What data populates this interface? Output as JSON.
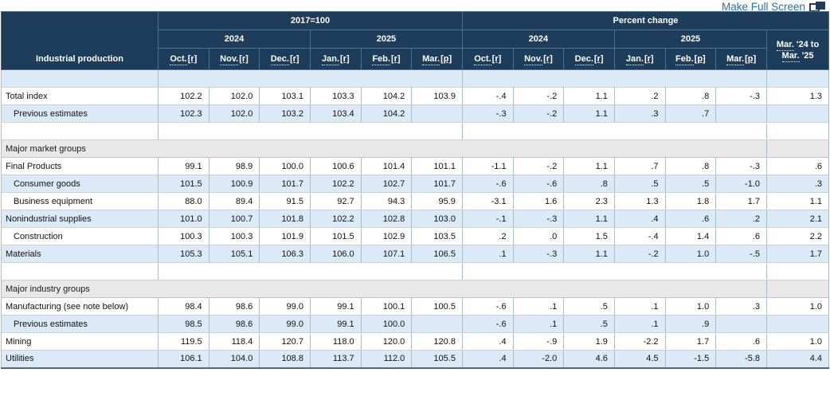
{
  "page": {
    "make_full_screen_label": "Make Full Screen"
  },
  "colors": {
    "header_bg": "#1e3d5b",
    "row_alt_blue": "#dce9f6",
    "section_gray": "#e8e8e8",
    "link_blue": "#2c6e9e",
    "cell_border": "#a9bccd"
  },
  "table": {
    "corner_label": "Industrial production",
    "group_headers": {
      "index": "2017=100",
      "pct": "Percent change"
    },
    "year_2024": "2024",
    "year_2025": "2025",
    "month_headers": [
      {
        "term": "Oct.",
        "tag": "[r]"
      },
      {
        "term": "Nov.",
        "tag": "[r]"
      },
      {
        "term": "Dec.",
        "tag": "[r]"
      },
      {
        "term": "Jan.",
        "tag": "[r]"
      },
      {
        "term": "Feb.",
        "tag": "[r]"
      },
      {
        "term": "Mar.",
        "tag": "[p]"
      },
      {
        "term": "Oct.",
        "tag": "[r]"
      },
      {
        "term": "Nov.",
        "tag": "[r]"
      },
      {
        "term": "Dec.",
        "tag": "[r]"
      },
      {
        "term": "Jan.",
        "tag": "[r]"
      },
      {
        "term": "Feb.",
        "tag": "[p]"
      },
      {
        "term": "Mar.",
        "tag": "[p]"
      }
    ],
    "span_header": {
      "term1": "Mar.",
      "rest1": " '24 to",
      "term2": "Mar.",
      "rest2": " '25"
    },
    "rows": [
      {
        "type": "spacer",
        "shade": "blue"
      },
      {
        "type": "data",
        "shade": "white",
        "indent": false,
        "label": "Total index",
        "index": [
          "102.2",
          "102.0",
          "103.1",
          "103.3",
          "104.2",
          "103.9"
        ],
        "pct": [
          "-.4",
          "-.2",
          "1.1",
          ".2",
          ".8",
          "-.3"
        ],
        "yoy": "1.3"
      },
      {
        "type": "data",
        "shade": "blue",
        "indent": true,
        "label": "Previous estimates",
        "index": [
          "102.3",
          "102.0",
          "103.2",
          "103.4",
          "104.2",
          ""
        ],
        "pct": [
          "-.3",
          "-.2",
          "1.1",
          ".3",
          ".7",
          ""
        ],
        "yoy": ""
      },
      {
        "type": "spacer",
        "shade": "white"
      },
      {
        "type": "section",
        "label": "Major market groups"
      },
      {
        "type": "data",
        "shade": "white",
        "indent": false,
        "label": "Final Products",
        "index": [
          "99.1",
          "98.9",
          "100.0",
          "100.6",
          "101.4",
          "101.1"
        ],
        "pct": [
          "-1.1",
          "-.2",
          "1.1",
          ".7",
          ".8",
          "-.3"
        ],
        "yoy": ".6"
      },
      {
        "type": "data",
        "shade": "blue",
        "indent": true,
        "label": "Consumer goods",
        "index": [
          "101.5",
          "100.9",
          "101.7",
          "102.2",
          "102.7",
          "101.7"
        ],
        "pct": [
          "-.6",
          "-.6",
          ".8",
          ".5",
          ".5",
          "-1.0"
        ],
        "yoy": ".3"
      },
      {
        "type": "data",
        "shade": "white",
        "indent": true,
        "label": "Business equipment",
        "index": [
          "88.0",
          "89.4",
          "91.5",
          "92.7",
          "94.3",
          "95.9"
        ],
        "pct": [
          "-3.1",
          "1.6",
          "2.3",
          "1.3",
          "1.8",
          "1.7"
        ],
        "yoy": "1.1"
      },
      {
        "type": "data",
        "shade": "blue",
        "indent": false,
        "label": "Nonindustrial supplies",
        "index": [
          "101.0",
          "100.7",
          "101.8",
          "102.2",
          "102.8",
          "103.0"
        ],
        "pct": [
          "-.1",
          "-.3",
          "1.1",
          ".4",
          ".6",
          ".2"
        ],
        "yoy": "2.1"
      },
      {
        "type": "data",
        "shade": "white",
        "indent": true,
        "label": "Construction",
        "index": [
          "100.3",
          "100.3",
          "101.9",
          "101.5",
          "102.9",
          "103.5"
        ],
        "pct": [
          ".2",
          ".0",
          "1.5",
          "-.4",
          "1.4",
          ".6"
        ],
        "yoy": "2.2"
      },
      {
        "type": "data",
        "shade": "blue",
        "indent": false,
        "label": "Materials",
        "index": [
          "105.3",
          "105.1",
          "106.3",
          "106.0",
          "107.1",
          "106.5"
        ],
        "pct": [
          ".1",
          "-.3",
          "1.1",
          "-.2",
          "1.0",
          "-.5"
        ],
        "yoy": "1.7"
      },
      {
        "type": "spacer",
        "shade": "white"
      },
      {
        "type": "section",
        "label": "Major industry groups"
      },
      {
        "type": "data",
        "shade": "white",
        "indent": false,
        "label": "Manufacturing (see note below)",
        "index": [
          "98.4",
          "98.6",
          "99.0",
          "99.1",
          "100.1",
          "100.5"
        ],
        "pct": [
          "-.6",
          ".1",
          ".5",
          ".1",
          "1.0",
          ".3"
        ],
        "yoy": "1.0"
      },
      {
        "type": "data",
        "shade": "blue",
        "indent": true,
        "label": "Previous estimates",
        "index": [
          "98.5",
          "98.6",
          "99.0",
          "99.1",
          "100.0",
          ""
        ],
        "pct": [
          "-.6",
          ".1",
          ".5",
          ".1",
          ".9",
          ""
        ],
        "yoy": ""
      },
      {
        "type": "data",
        "shade": "white",
        "indent": false,
        "label": "Mining",
        "index": [
          "119.5",
          "118.4",
          "120.7",
          "118.0",
          "120.0",
          "120.8"
        ],
        "pct": [
          ".4",
          "-.9",
          "1.9",
          "-2.2",
          "1.7",
          ".6"
        ],
        "yoy": "1.0"
      },
      {
        "type": "data",
        "shade": "blue",
        "indent": false,
        "label": "Utilities",
        "index": [
          "106.1",
          "104.0",
          "108.8",
          "113.7",
          "112.0",
          "105.5"
        ],
        "pct": [
          ".4",
          "-2.0",
          "4.6",
          "4.5",
          "-1.5",
          "-5.8"
        ],
        "yoy": "4.4"
      }
    ]
  }
}
